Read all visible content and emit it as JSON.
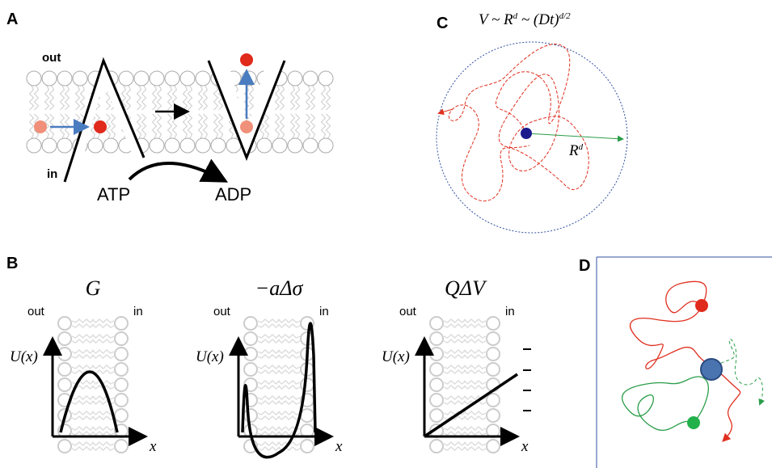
{
  "panels": {
    "a": {
      "label": "A",
      "out": "out",
      "in": "in",
      "atp": "ATP",
      "adp": "ADP"
    },
    "b": {
      "label": "B",
      "plots": [
        {
          "title": "G",
          "out": "out",
          "in": "in",
          "y_label": "U(x)",
          "x_label": "x"
        },
        {
          "title": "−aΔσ",
          "out": "out",
          "in": "in",
          "y_label": "U(x)",
          "x_label": "x"
        },
        {
          "title": "QΔV",
          "out": "out",
          "in": "in",
          "y_label": "U(x)",
          "x_label": "x"
        }
      ]
    },
    "c": {
      "label": "C",
      "equation": [
        "V ~ R",
        "d",
        " ~ (Dt)",
        "d/2"
      ],
      "radius_label": [
        "R",
        "d"
      ]
    },
    "d": {
      "label": "D"
    }
  }
}
